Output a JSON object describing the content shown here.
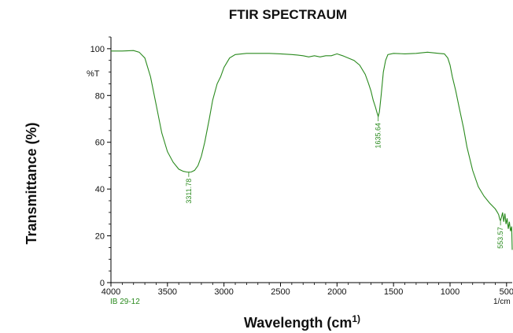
{
  "chart_data": {
    "type": "line",
    "title": "FTIR SPECTRAUM",
    "xlabel": "Wavelength (cm",
    "xlabel_sup": "1)",
    "ylabel": "Transmittance (%)",
    "y_unit_label": "%T",
    "x_unit_label": "1/cm",
    "sample_label": "IB 29-12",
    "xlim": [
      4000,
      450
    ],
    "ylim": [
      0,
      105
    ],
    "x_ticks": [
      {
        "value": 4000,
        "label": "4000"
      },
      {
        "value": 3500,
        "label": "3500"
      },
      {
        "value": 3000,
        "label": "3000"
      },
      {
        "value": 2500,
        "label": "2500"
      },
      {
        "value": 2000,
        "label": "2000"
      },
      {
        "value": 1500,
        "label": "1500"
      },
      {
        "value": 1000,
        "label": "1000"
      },
      {
        "value": 500,
        "label": "500"
      }
    ],
    "y_ticks": [
      {
        "value": 0,
        "label": "0"
      },
      {
        "value": 20,
        "label": "20"
      },
      {
        "value": 40,
        "label": "40"
      },
      {
        "value": 60,
        "label": "60"
      },
      {
        "value": 80,
        "label": "80"
      },
      {
        "value": 100,
        "label": "100"
      }
    ],
    "line_color": "#2a8a1e",
    "series": [
      {
        "x": [
          4000,
          3900,
          3800,
          3750,
          3700,
          3650,
          3600,
          3550,
          3500,
          3450,
          3400,
          3360,
          3330,
          3311.78,
          3290,
          3260,
          3230,
          3200,
          3170,
          3130,
          3100,
          3060,
          3030,
          3000,
          2950,
          2900,
          2800,
          2700,
          2600,
          2500,
          2400,
          2350,
          2300,
          2250,
          2200,
          2150,
          2100,
          2050,
          2000,
          1950,
          1900,
          1850,
          1800,
          1750,
          1720,
          1700,
          1680,
          1660,
          1645,
          1635.64,
          1625,
          1610,
          1590,
          1570,
          1550,
          1500,
          1400,
          1300,
          1200,
          1100,
          1050,
          1020,
          1000,
          980,
          950,
          920,
          880,
          850,
          800,
          750,
          700,
          650,
          600,
          580,
          570,
          560,
          553.57,
          545,
          535,
          525,
          515,
          505,
          495,
          485,
          475,
          465,
          455,
          450
        ],
        "y": [
          99.0,
          99.0,
          99.2,
          98.5,
          96.0,
          88.0,
          76.0,
          64.0,
          56.0,
          51.5,
          48.5,
          47.6,
          47.3,
          47.2,
          47.3,
          48.0,
          50.0,
          54.0,
          60.0,
          70.0,
          78.0,
          85.0,
          88.0,
          92.0,
          96.0,
          97.5,
          98.0,
          98.0,
          98.0,
          97.8,
          97.5,
          97.3,
          97.0,
          96.5,
          97.0,
          96.5,
          97.0,
          97.0,
          97.8,
          97.0,
          96.0,
          95.0,
          93.0,
          89.0,
          85.0,
          82.0,
          78.0,
          75.0,
          72.5,
          71.0,
          73.0,
          80.0,
          90.0,
          95.0,
          97.5,
          98.0,
          97.8,
          98.0,
          98.5,
          98.0,
          97.8,
          96.0,
          93.0,
          88.0,
          82.0,
          75.0,
          66.0,
          58.0,
          48.0,
          41.0,
          37.0,
          34.0,
          31.5,
          30.0,
          29.0,
          27.0,
          26.5,
          28.0,
          30.0,
          26.0,
          29.5,
          25.0,
          27.5,
          23.0,
          26.0,
          22.0,
          24.0,
          14.0
        ]
      }
    ],
    "annotations": [
      {
        "x": 3311.78,
        "y": 47.2,
        "label": "3311.78"
      },
      {
        "x": 1635.64,
        "y": 71.0,
        "label": "1635.64"
      },
      {
        "x": 553.57,
        "y": 26.5,
        "label": "553.57"
      }
    ]
  }
}
